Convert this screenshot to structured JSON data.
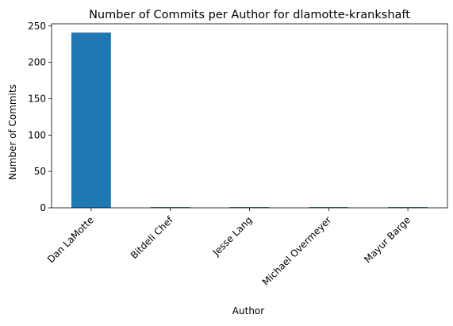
{
  "chart_data": {
    "type": "bar",
    "title": "Number of Commits per Author for dlamotte-krankshaft",
    "xlabel": "Author",
    "ylabel": "Number of Commits",
    "categories": [
      "Dan LaMotte",
      "Bitdeli Chef",
      "Jesse Lang",
      "Michael Overmeyer",
      "Mayur Barge"
    ],
    "values": [
      241,
      1,
      1,
      1,
      1
    ],
    "ylim": [
      0,
      253
    ],
    "yticks": [
      0,
      50,
      100,
      150,
      200,
      250
    ],
    "grid": false,
    "legend": "none",
    "bar_color": "#1f77b4"
  }
}
